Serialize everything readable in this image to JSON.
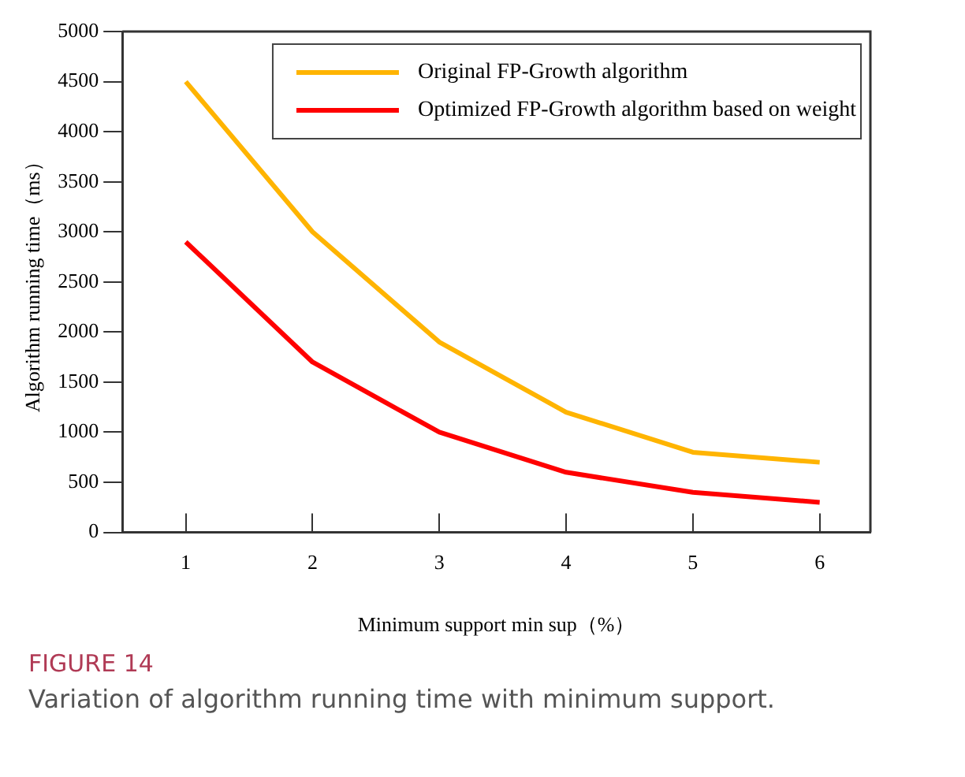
{
  "chart_data": {
    "type": "line",
    "xlabel": "Minimum support min sup（%）",
    "ylabel": "Algorithm running time（ms）",
    "x": [
      1,
      2,
      3,
      4,
      5,
      6
    ],
    "series": [
      {
        "name": "Original FP-Growth algorithm",
        "color": "#ffb400",
        "values": [
          4500,
          3000,
          1900,
          1200,
          800,
          700
        ]
      },
      {
        "name": "Optimized FP-Growth algorithm based on weight",
        "color": "#ff0000",
        "values": [
          2900,
          1700,
          1000,
          600,
          400,
          300
        ]
      }
    ],
    "xlim": [
      0.5,
      6.4
    ],
    "xticks": [
      1,
      2,
      3,
      4,
      5,
      6
    ],
    "ylim": [
      0,
      5000
    ],
    "yticks": [
      0,
      500,
      1000,
      1500,
      2000,
      2500,
      3000,
      3500,
      4000,
      4500,
      5000
    ],
    "grid": false,
    "legend": "top right",
    "marker": "none",
    "line_style": "solid",
    "annotations": [
      "FIGURE 14",
      "Variation of algorithm running time with minimum support."
    ]
  }
}
